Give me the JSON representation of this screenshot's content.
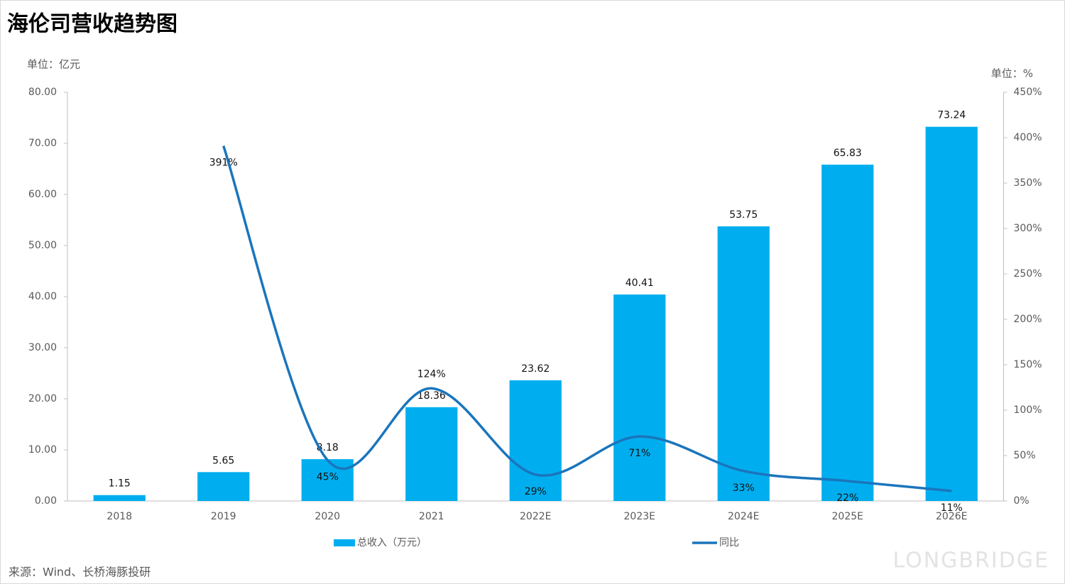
{
  "chart_data": {
    "type": "bar-line",
    "title": "海伦司营收趋势图",
    "y_unit": "单位：亿元",
    "y2_unit": "单位：%",
    "source": "来源：Wind、长桥海豚投研",
    "watermark": "LONGBRIDGE",
    "categories": [
      "2018",
      "2019",
      "2020",
      "2021",
      "2022E",
      "2023E",
      "2024E",
      "2025E",
      "2026E"
    ],
    "series": [
      {
        "name": "总收入（万元）",
        "type": "bar",
        "color": "#00aeef",
        "values": [
          1.15,
          5.65,
          8.18,
          18.36,
          23.62,
          40.41,
          53.75,
          65.83,
          73.24
        ]
      },
      {
        "name": "同比",
        "type": "line",
        "axis": "y2",
        "color": "#1a75bc",
        "values": [
          null,
          391,
          45,
          124,
          29,
          71,
          33,
          22,
          11
        ],
        "value_labels": [
          null,
          "391%",
          "45%",
          "124%",
          "29%",
          "71%",
          "33%",
          "22%",
          "11%"
        ]
      }
    ],
    "ylim": [
      0,
      80
    ],
    "yticks": [
      {
        "value": 0,
        "label": "0.00"
      },
      {
        "value": 10,
        "label": "10.00"
      },
      {
        "value": 20,
        "label": "20.00"
      },
      {
        "value": 30,
        "label": "30.00"
      },
      {
        "value": 40,
        "label": "40.00"
      },
      {
        "value": 50,
        "label": "50.00"
      },
      {
        "value": 60,
        "label": "60.00"
      },
      {
        "value": 70,
        "label": "70.00"
      },
      {
        "value": 80,
        "label": "80.00"
      }
    ],
    "y2lim": [
      0,
      450
    ],
    "y2ticks": [
      {
        "value": 0,
        "label": "0%"
      },
      {
        "value": 50,
        "label": "50%"
      },
      {
        "value": 100,
        "label": "100%"
      },
      {
        "value": 150,
        "label": "150%"
      },
      {
        "value": 200,
        "label": "200%"
      },
      {
        "value": 250,
        "label": "250%"
      },
      {
        "value": 300,
        "label": "300%"
      },
      {
        "value": 350,
        "label": "350%"
      },
      {
        "value": 400,
        "label": "400%"
      },
      {
        "value": 450,
        "label": "450%"
      }
    ]
  }
}
